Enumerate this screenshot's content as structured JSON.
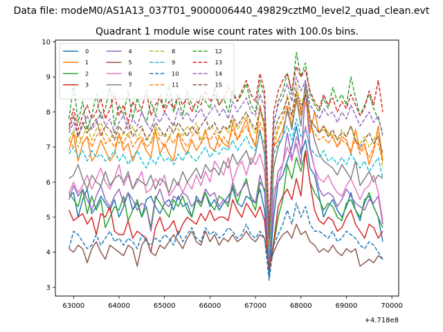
{
  "header": {
    "suptitle": "Data file: modeM0/AS1A13_037T01_9000006440_49829cztM0_level2_quad_clean.evt"
  },
  "chart_data": {
    "type": "line",
    "title": "Quadrant 1 module wise count rates with 100.0s bins.",
    "xlabel": "",
    "ylabel": "",
    "x_offset_label": "+4.718e8",
    "xlim": [
      62600,
      70150
    ],
    "ylim": [
      2.75,
      10.05
    ],
    "xticks": [
      63000,
      64000,
      65000,
      66000,
      67000,
      68000,
      69000,
      70000
    ],
    "yticks": [
      3,
      4,
      5,
      6,
      7,
      8,
      9,
      10
    ],
    "x_start": 62900,
    "x_step": 100,
    "legend_position": "top-left",
    "series": [
      {
        "name": "0",
        "color": "#1f77b4",
        "dash": "solid",
        "values": [
          5.6,
          5.7,
          5.0,
          5.5,
          5.8,
          5.1,
          5.3,
          5.6,
          5.4,
          5.2,
          5.5,
          5.0,
          5.3,
          5.7,
          5.2,
          5.4,
          5.0,
          5.5,
          5.6,
          5.3,
          5.1,
          5.4,
          5.5,
          5.2,
          5.6,
          5.3,
          5.4,
          5.0,
          5.6,
          5.4,
          5.7,
          5.3,
          5.5,
          5.2,
          5.4,
          5.6,
          5.8,
          5.4,
          5.3,
          5.6,
          5.5,
          5.4,
          5.8,
          5.2,
          3.3,
          5.0,
          6.0,
          6.2,
          6.6,
          7.0,
          7.6,
          6.8,
          7.2,
          6.4,
          6.2,
          5.6,
          5.0,
          5.3,
          5.5,
          5.2,
          5.0,
          5.3,
          5.7,
          5.2,
          4.9,
          5.5,
          5.6,
          5.3,
          5.0,
          4.3
        ]
      },
      {
        "name": "1",
        "color": "#ff7f0e",
        "dash": "solid",
        "values": [
          6.9,
          7.4,
          6.6,
          7.1,
          7.3,
          6.6,
          6.8,
          7.2,
          6.9,
          6.6,
          6.8,
          7.4,
          6.9,
          7.1,
          6.6,
          6.9,
          7.2,
          6.9,
          6.7,
          7.5,
          6.8,
          7.1,
          6.8,
          6.6,
          7.4,
          7.0,
          6.8,
          7.2,
          6.9,
          7.1,
          7.5,
          7.0,
          6.9,
          7.3,
          7.1,
          7.0,
          7.7,
          7.2,
          7.5,
          7.8,
          7.3,
          7.0,
          8.2,
          7.5,
          4.5,
          7.0,
          7.2,
          7.5,
          8.0,
          7.6,
          8.3,
          7.9,
          8.6,
          7.4,
          8.0,
          7.4,
          7.6,
          7.4,
          7.3,
          7.0,
          7.3,
          7.2,
          6.8,
          7.5,
          6.9,
          7.1,
          6.5,
          6.9,
          7.6,
          6.6
        ]
      },
      {
        "name": "2",
        "color": "#2ca02c",
        "dash": "solid",
        "values": [
          5.7,
          5.5,
          5.3,
          5.8,
          5.1,
          5.6,
          5.2,
          5.5,
          4.7,
          5.0,
          5.3,
          5.2,
          5.6,
          4.9,
          5.2,
          5.5,
          5.0,
          5.3,
          4.7,
          5.6,
          5.4,
          5.2,
          5.0,
          5.5,
          5.3,
          5.6,
          5.2,
          5.0,
          5.5,
          5.3,
          5.7,
          5.4,
          5.2,
          5.6,
          5.5,
          5.3,
          5.9,
          5.4,
          5.8,
          6.1,
          5.5,
          5.2,
          6.0,
          5.8,
          3.5,
          4.2,
          5.0,
          5.5,
          6.5,
          6.1,
          6.7,
          6.3,
          6.9,
          6.0,
          5.7,
          5.5,
          5.2,
          5.4,
          5.3,
          5.0,
          4.9,
          5.4,
          5.5,
          5.2,
          5.0,
          5.4,
          5.7,
          5.3,
          5.0,
          4.7
        ]
      },
      {
        "name": "3",
        "color": "#d62728",
        "dash": "solid",
        "values": [
          5.2,
          4.9,
          5.0,
          5.1,
          4.8,
          5.0,
          4.5,
          5.1,
          5.0,
          5.3,
          4.6,
          4.5,
          4.5,
          4.9,
          4.4,
          4.6,
          4.5,
          4.4,
          4.0,
          4.7,
          5.0,
          4.6,
          4.7,
          4.9,
          4.5,
          4.8,
          5.0,
          4.9,
          4.8,
          5.1,
          4.9,
          5.2,
          4.9,
          5.0,
          5.0,
          4.9,
          5.5,
          5.2,
          5.0,
          5.4,
          5.2,
          5.0,
          5.3,
          4.9,
          3.5,
          4.3,
          5.3,
          5.6,
          5.8,
          5.5,
          6.1,
          5.6,
          6.9,
          6.0,
          5.2,
          4.9,
          4.8,
          5.0,
          4.9,
          4.6,
          4.7,
          5.0,
          5.2,
          4.8,
          4.6,
          4.4,
          4.8,
          4.7,
          4.4,
          4.6
        ]
      },
      {
        "name": "4",
        "color": "#9467bd",
        "dash": "solid",
        "values": [
          5.5,
          5.9,
          5.6,
          5.8,
          5.5,
          5.2,
          5.6,
          5.9,
          5.5,
          5.3,
          5.6,
          5.8,
          5.4,
          5.7,
          5.5,
          5.2,
          5.4,
          5.3,
          4.6,
          5.5,
          5.8,
          5.4,
          5.3,
          5.6,
          5.5,
          5.7,
          5.6,
          5.3,
          5.5,
          5.4,
          5.8,
          5.6,
          5.7,
          5.3,
          5.5,
          5.4,
          6.0,
          5.6,
          5.8,
          6.0,
          5.6,
          5.4,
          6.2,
          5.7,
          3.6,
          5.4,
          6.3,
          6.5,
          7.4,
          6.7,
          7.1,
          6.5,
          8.7,
          7.0,
          6.4,
          5.8,
          5.6,
          5.7,
          5.6,
          5.3,
          5.5,
          5.8,
          5.6,
          5.4,
          5.3,
          5.2,
          5.5,
          5.4,
          5.6,
          4.8
        ]
      },
      {
        "name": "5",
        "color": "#8c564b",
        "dash": "solid",
        "values": [
          4.1,
          4.0,
          4.2,
          4.1,
          3.7,
          4.1,
          4.3,
          4.0,
          3.8,
          4.2,
          4.1,
          4.0,
          3.9,
          4.2,
          4.1,
          3.6,
          4.2,
          4.4,
          4.0,
          3.9,
          4.2,
          4.1,
          4.3,
          4.5,
          4.3,
          4.1,
          4.4,
          4.6,
          4.3,
          4.2,
          4.6,
          4.3,
          4.5,
          4.2,
          4.4,
          4.3,
          4.5,
          4.3,
          4.4,
          4.6,
          4.4,
          4.3,
          4.5,
          4.4,
          3.6,
          4.0,
          4.3,
          4.5,
          4.6,
          4.4,
          4.8,
          4.5,
          4.6,
          4.3,
          4.2,
          4.0,
          4.1,
          4.0,
          4.2,
          4.0,
          3.9,
          4.1,
          4.0,
          4.1,
          3.6,
          3.7,
          3.8,
          3.7,
          3.9,
          3.8
        ]
      },
      {
        "name": "6",
        "color": "#e377c2",
        "dash": "solid",
        "values": [
          5.7,
          6.0,
          5.7,
          5.9,
          6.2,
          5.8,
          6.1,
          6.4,
          6.0,
          5.8,
          6.1,
          6.5,
          5.9,
          6.2,
          5.8,
          6.0,
          6.3,
          5.7,
          5.8,
          6.1,
          5.9,
          6.2,
          5.6,
          5.8,
          6.0,
          5.7,
          6.0,
          5.8,
          6.2,
          5.9,
          6.3,
          6.0,
          6.6,
          6.4,
          6.2,
          6.7,
          6.0,
          6.4,
          6.6,
          6.2,
          6.7,
          6.5,
          6.8,
          6.3,
          4.1,
          5.8,
          6.0,
          6.5,
          7.0,
          6.6,
          7.3,
          6.9,
          7.6,
          6.9,
          6.4,
          6.1,
          6.0,
          6.2,
          5.9,
          5.7,
          5.6,
          5.9,
          6.1,
          5.8,
          5.5,
          5.8,
          5.9,
          6.2,
          5.7,
          4.9
        ]
      },
      {
        "name": "7",
        "color": "#7f7f7f",
        "dash": "solid",
        "values": [
          6.1,
          6.2,
          6.5,
          6.1,
          5.8,
          6.2,
          6.0,
          5.9,
          6.3,
          5.9,
          6.1,
          6.2,
          6.0,
          6.3,
          5.8,
          6.1,
          6.0,
          5.9,
          6.2,
          5.8,
          6.1,
          6.0,
          5.7,
          6.1,
          5.9,
          6.3,
          6.0,
          6.2,
          6.4,
          6.1,
          6.5,
          6.3,
          6.4,
          6.2,
          6.6,
          6.4,
          6.8,
          6.5,
          6.7,
          6.9,
          6.5,
          6.8,
          7.5,
          6.8,
          3.8,
          6.4,
          7.0,
          7.3,
          8.1,
          7.5,
          8.4,
          7.6,
          8.9,
          7.8,
          7.2,
          6.8,
          6.6,
          6.5,
          6.4,
          6.2,
          6.5,
          6.3,
          6.1,
          6.6,
          5.9,
          6.1,
          6.3,
          6.0,
          6.2,
          6.1
        ]
      },
      {
        "name": "8",
        "color": "#bcbd22",
        "dash": "dashed",
        "values": [
          7.2,
          7.5,
          7.0,
          7.3,
          7.6,
          7.2,
          7.5,
          7.7,
          7.4,
          7.2,
          7.5,
          7.1,
          7.4,
          7.3,
          7.6,
          7.2,
          7.5,
          7.3,
          7.1,
          7.6,
          7.3,
          7.4,
          7.2,
          7.7,
          7.5,
          7.3,
          7.6,
          7.4,
          7.7,
          7.2,
          7.4,
          7.6,
          7.5,
          7.3,
          7.6,
          7.4,
          7.8,
          7.5,
          7.7,
          7.9,
          7.6,
          7.4,
          8.0,
          7.6,
          4.0,
          7.2,
          7.6,
          7.8,
          8.5,
          7.9,
          8.8,
          8.2,
          8.6,
          7.8,
          7.6,
          7.4,
          7.5,
          7.3,
          7.4,
          7.2,
          7.5,
          7.3,
          7.6,
          7.2,
          7.1,
          7.3,
          7.0,
          7.2,
          7.4,
          6.4
        ]
      },
      {
        "name": "9",
        "color": "#17becf",
        "dash": "dashed",
        "values": [
          6.8,
          7.0,
          6.7,
          6.9,
          6.6,
          6.9,
          6.7,
          6.8,
          6.6,
          6.7,
          6.9,
          6.6,
          6.8,
          6.5,
          6.7,
          6.9,
          6.6,
          6.4,
          6.7,
          6.5,
          6.8,
          6.6,
          6.7,
          6.5,
          6.8,
          6.6,
          6.9,
          6.7,
          6.6,
          6.8,
          7.0,
          6.7,
          6.9,
          6.8,
          7.0,
          6.9,
          7.2,
          6.9,
          7.1,
          7.3,
          7.0,
          6.9,
          7.4,
          7.1,
          3.9,
          6.8,
          7.1,
          7.3,
          7.6,
          7.2,
          7.8,
          7.3,
          7.5,
          7.0,
          6.8,
          6.7,
          6.9,
          6.6,
          6.7,
          6.5,
          6.7,
          6.5,
          6.8,
          6.6,
          6.4,
          6.6,
          6.3,
          6.5,
          6.7,
          6.1
        ]
      },
      {
        "name": "10",
        "color": "#1f77b4",
        "dash": "dashed",
        "values": [
          4.1,
          4.6,
          4.5,
          4.3,
          4.1,
          4.2,
          4.5,
          4.2,
          4.4,
          4.6,
          4.3,
          4.4,
          4.2,
          4.4,
          4.3,
          4.1,
          4.5,
          4.3,
          4.2,
          4.4,
          4.3,
          4.5,
          4.4,
          4.2,
          4.6,
          4.3,
          4.5,
          4.7,
          4.4,
          4.3,
          4.7,
          4.5,
          4.6,
          4.4,
          4.5,
          4.7,
          4.6,
          4.4,
          4.5,
          4.8,
          4.5,
          4.4,
          4.6,
          4.4,
          3.2,
          4.2,
          4.5,
          4.8,
          5.2,
          4.8,
          5.4,
          5.0,
          5.3,
          4.8,
          4.6,
          4.6,
          4.5,
          4.4,
          4.6,
          4.3,
          4.4,
          4.6,
          4.5,
          4.4,
          4.2,
          4.1,
          4.3,
          4.2,
          4.0,
          3.8
        ]
      },
      {
        "name": "11",
        "color": "#ff7f0e",
        "dash": "dashed",
        "values": [
          7.2,
          7.0,
          7.4,
          7.1,
          7.3,
          7.0,
          7.3,
          7.5,
          7.1,
          7.2,
          7.0,
          7.3,
          7.1,
          7.4,
          7.0,
          7.2,
          7.3,
          7.0,
          7.1,
          7.4,
          7.2,
          7.0,
          7.3,
          7.1,
          7.4,
          7.2,
          7.0,
          7.3,
          7.5,
          7.1,
          7.3,
          7.2,
          7.4,
          7.0,
          7.3,
          7.1,
          7.5,
          7.2,
          7.4,
          7.6,
          7.3,
          7.1,
          7.7,
          7.4,
          4.2,
          7.0,
          7.5,
          7.8,
          8.2,
          7.7,
          8.5,
          8.0,
          8.3,
          7.6,
          7.4,
          7.2,
          7.3,
          7.1,
          7.3,
          7.0,
          7.2,
          7.1,
          6.9,
          7.2,
          6.8,
          7.0,
          6.7,
          7.0,
          7.1,
          6.6
        ]
      },
      {
        "name": "12",
        "color": "#2ca02c",
        "dash": "dashed",
        "values": [
          7.8,
          8.8,
          7.7,
          8.3,
          7.5,
          7.9,
          8.5,
          7.8,
          8.1,
          8.7,
          7.6,
          8.2,
          7.9,
          8.6,
          7.8,
          8.4,
          8.0,
          7.7,
          8.3,
          7.9,
          8.5,
          8.1,
          8.8,
          8.0,
          8.4,
          7.9,
          8.6,
          8.2,
          8.0,
          8.5,
          8.3,
          8.1,
          8.7,
          8.2,
          8.4,
          8.0,
          8.6,
          8.3,
          8.5,
          8.8,
          8.2,
          8.0,
          8.9,
          8.4,
          4.5,
          7.6,
          8.3,
          8.6,
          9.1,
          8.5,
          9.7,
          9.0,
          9.4,
          8.5,
          8.2,
          8.0,
          8.4,
          8.1,
          8.7,
          8.3,
          8.5,
          8.2,
          9.0,
          8.4,
          7.9,
          8.2,
          8.5,
          8.1,
          7.8,
          7.4
        ]
      },
      {
        "name": "13",
        "color": "#d62728",
        "dash": "dashed",
        "values": [
          7.6,
          8.1,
          7.5,
          7.9,
          8.2,
          7.8,
          8.0,
          8.4,
          7.8,
          8.1,
          8.5,
          7.9,
          8.2,
          7.7,
          8.3,
          8.0,
          8.1,
          8.6,
          7.9,
          8.2,
          8.4,
          8.0,
          8.3,
          8.1,
          8.5,
          8.2,
          8.4,
          8.0,
          8.3,
          8.2,
          8.6,
          8.3,
          8.5,
          8.2,
          8.4,
          8.7,
          8.5,
          8.3,
          8.6,
          8.9,
          8.5,
          8.3,
          9.1,
          8.6,
          4.7,
          8.0,
          8.6,
          8.9,
          9.1,
          8.6,
          9.3,
          9.0,
          9.2,
          8.6,
          8.3,
          8.1,
          8.5,
          8.2,
          8.4,
          8.0,
          8.3,
          8.1,
          8.5,
          8.2,
          7.9,
          8.1,
          8.6,
          8.2,
          8.9,
          8.0
        ]
      },
      {
        "name": "14",
        "color": "#9467bd",
        "dash": "dashed",
        "values": [
          7.4,
          7.7,
          7.3,
          7.6,
          7.9,
          7.5,
          7.7,
          8.0,
          7.6,
          7.8,
          7.4,
          7.7,
          7.9,
          7.5,
          7.8,
          7.6,
          8.0,
          7.7,
          7.5,
          7.9,
          7.7,
          8.0,
          7.8,
          7.6,
          8.1,
          7.8,
          8.0,
          7.7,
          7.9,
          8.1,
          7.8,
          8.0,
          8.2,
          7.9,
          8.1,
          7.8,
          8.3,
          8.0,
          8.2,
          8.4,
          8.0,
          7.9,
          8.5,
          8.1,
          4.6,
          7.7,
          8.2,
          8.4,
          8.8,
          8.3,
          9.0,
          8.6,
          8.9,
          8.2,
          8.0,
          7.8,
          8.1,
          7.9,
          8.0,
          7.7,
          8.0,
          7.8,
          8.2,
          7.9,
          7.6,
          7.8,
          8.0,
          7.7,
          7.9,
          7.3
        ]
      },
      {
        "name": "15",
        "color": "#8c564b",
        "dash": "dashed",
        "values": [
          7.5,
          7.9,
          7.3,
          7.7,
          7.4,
          7.6,
          7.8,
          7.3,
          7.6,
          7.5,
          7.2,
          7.6,
          7.4,
          7.7,
          7.3,
          7.5,
          7.6,
          7.2,
          7.4,
          7.7,
          7.5,
          7.3,
          7.6,
          7.4,
          7.7,
          7.5,
          7.3,
          7.6,
          7.4,
          7.6,
          7.8,
          7.5,
          7.7,
          7.4,
          7.6,
          7.5,
          7.9,
          7.6,
          7.8,
          8.0,
          7.7,
          7.5,
          8.1,
          7.7,
          4.4,
          7.4,
          7.8,
          8.0,
          8.4,
          7.9,
          8.6,
          8.1,
          8.5,
          7.8,
          7.6,
          7.4,
          7.6,
          7.3,
          7.5,
          7.2,
          7.4,
          7.3,
          7.6,
          7.2,
          7.0,
          7.2,
          7.4,
          7.1,
          7.3,
          6.8
        ]
      }
    ]
  }
}
